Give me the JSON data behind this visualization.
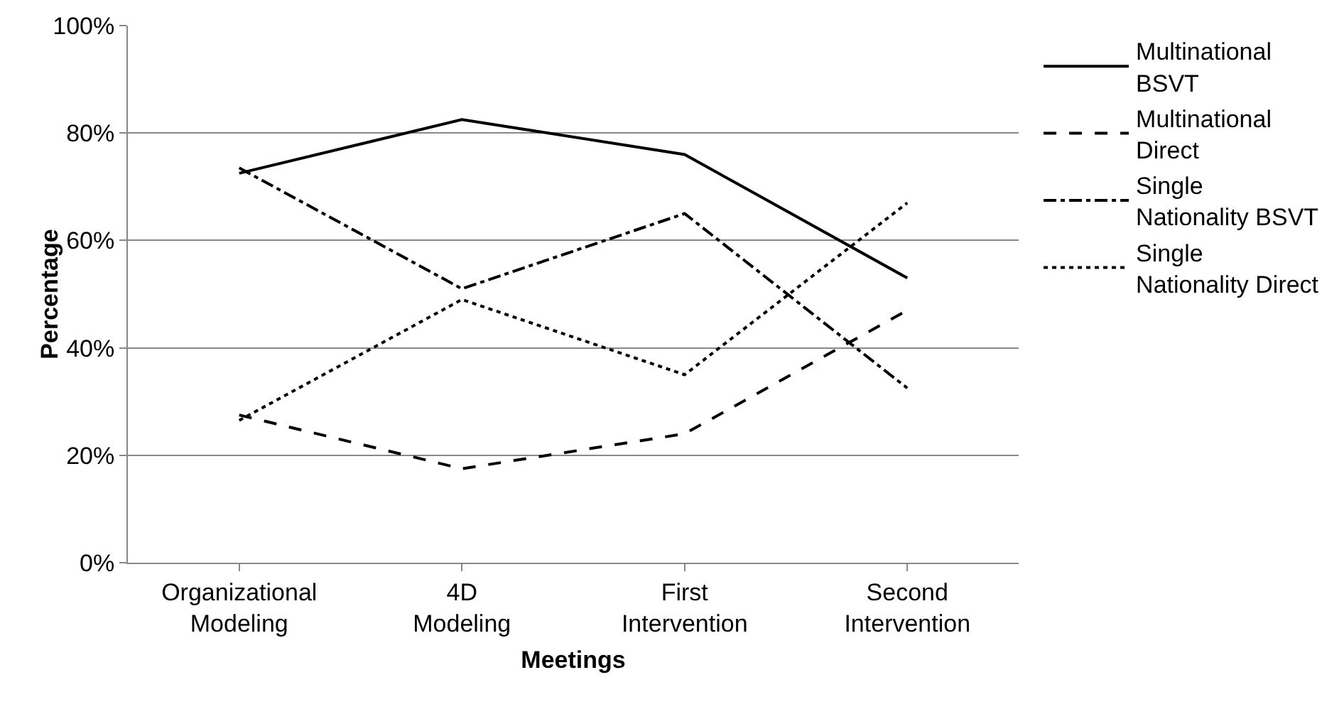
{
  "chart_data": {
    "type": "line",
    "xlabel": "Meetings",
    "ylabel": "Percentage",
    "categories": [
      "Organizational Modeling",
      "4D Modeling",
      "First Intervention",
      "Second Intervention"
    ],
    "series": [
      {
        "name": "Multinational BSVT",
        "color": "#000000",
        "line_style": "solid",
        "values": [
          72.5,
          82.5,
          76,
          53
        ]
      },
      {
        "name": "Multinational Direct",
        "color": "#000000",
        "line_style": "dashed",
        "values": [
          27.5,
          17.5,
          24,
          47
        ]
      },
      {
        "name": "Single Nationality BSVT",
        "color": "#000000",
        "line_style": "dashdot",
        "values": [
          73.5,
          51,
          65,
          32.5
        ]
      },
      {
        "name": "Single Nationality Direct",
        "color": "#000000",
        "line_style": "dotted",
        "values": [
          26.5,
          49,
          35,
          67
        ]
      }
    ],
    "ylim": [
      0,
      100
    ],
    "yticks": [
      {
        "value": 0,
        "label": "0%"
      },
      {
        "value": 20,
        "label": "20%"
      },
      {
        "value": 40,
        "label": "40%"
      },
      {
        "value": 60,
        "label": "60%"
      },
      {
        "value": 80,
        "label": "80%"
      },
      {
        "value": 100,
        "label": "100%"
      }
    ],
    "grid": "y",
    "legend": "right",
    "marker": "none"
  }
}
